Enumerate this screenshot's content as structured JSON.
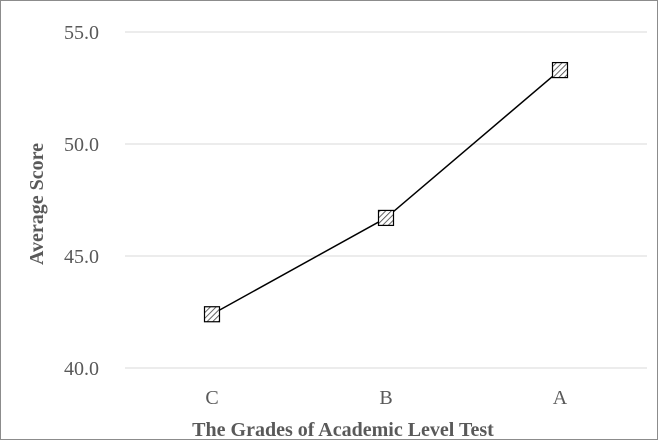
{
  "chart_data": {
    "type": "line",
    "categories": [
      "C",
      "B",
      "A"
    ],
    "series": [
      {
        "values": [
          42.4,
          46.7,
          53.3
        ]
      }
    ],
    "xlabel": "The Grades of Academic Level Test",
    "ylabel": "Average Score",
    "ylim": [
      40.0,
      55.0
    ],
    "yticks": [
      "40.0",
      "45.0",
      "50.0",
      "55.0"
    ],
    "grid": true,
    "legend": "none",
    "marker": "square-hatched",
    "colors": {
      "line": "#000000",
      "grid": "#d9d9d9",
      "marker_fill": "#d9d9d9",
      "text": "#595959"
    }
  }
}
